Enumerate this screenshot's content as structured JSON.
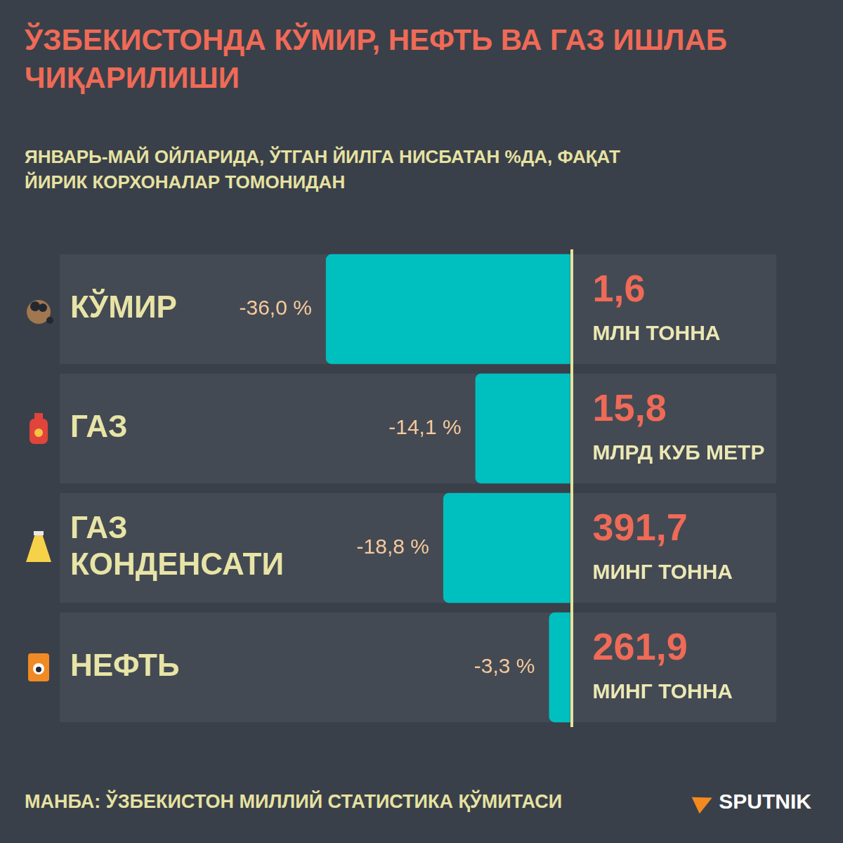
{
  "chart_data": {
    "type": "bar",
    "orientation": "horizontal",
    "title": "ЎЗБЕКИСТОНДА КЎМИР, НЕФТЬ ВА ГАЗ ИШЛАБ ЧИҚАРИЛИШИ",
    "subtitle": "ЯНВАРЬ-МАЙ ОЙЛАРИДА, ЎТГАН ЙИЛГА НИСБАТАН %ДА, ФАҚАТ ЙИРИК КОРХОНАЛАР ТОМОНИДАН",
    "source": "МАНБА: ЎЗБЕКИСТОН МИЛЛИЙ СТАТИСТИКА ҚЎМИТАСИ",
    "brand": "SPUTNIK",
    "categories": [
      "КЎМИР",
      "ГАЗ",
      "ГАЗ КОНДЕНСАТИ",
      "НЕФТЬ"
    ],
    "values": [
      -36.0,
      -14.1,
      -18.8,
      -3.3
    ],
    "value_labels": [
      "-36,0 %",
      "-14,1 %",
      "-18,8 %",
      "-3,3 %"
    ],
    "data_labels": true,
    "production_labels": [
      "1,6",
      "15,8",
      "391,7",
      "261,9"
    ],
    "production_units": [
      "МЛН ТОННА",
      "МЛРД КУБ МЕТР",
      "МИНГ ТОННА",
      "МИНГ ТОННА"
    ],
    "color": "#00bfbf",
    "xlim": [
      -75,
      30
    ],
    "xticks": [
      0
    ],
    "tick_labels": false
  }
}
